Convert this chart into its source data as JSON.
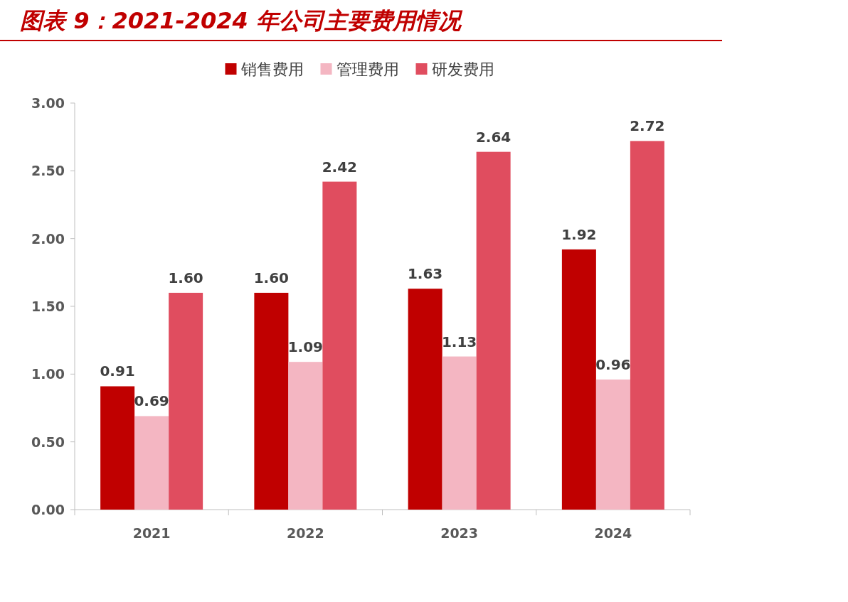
{
  "chart_data": {
    "type": "bar",
    "title": "图表 9：2021-2024 年公司主要费用情况",
    "categories": [
      "2021",
      "2022",
      "2023",
      "2024"
    ],
    "series": [
      {
        "name": "销售费用",
        "color": "#c00000",
        "values": [
          0.91,
          1.6,
          1.63,
          1.92
        ],
        "value_labels": [
          "0.91",
          "1.60",
          "1.63",
          "1.92"
        ]
      },
      {
        "name": "管理费用",
        "color": "#f4b6c2",
        "values": [
          0.69,
          1.09,
          1.13,
          0.96
        ],
        "value_labels": [
          "0.69",
          "1.09",
          "1.13",
          "0.96"
        ]
      },
      {
        "name": "研发费用",
        "color": "#e04d5f",
        "values": [
          1.6,
          2.42,
          2.64,
          2.72
        ],
        "value_labels": [
          "1.60",
          "2.42",
          "2.64",
          "2.72"
        ]
      }
    ],
    "ylim": [
      0,
      3
    ],
    "yticks": [
      {
        "value": 0,
        "label": "0.00"
      },
      {
        "value": 0.5,
        "label": "0.50"
      },
      {
        "value": 1,
        "label": "1.00"
      },
      {
        "value": 1.5,
        "label": "1.50"
      },
      {
        "value": 2,
        "label": "2.00"
      },
      {
        "value": 2.5,
        "label": "2.50"
      },
      {
        "value": 3,
        "label": "3.00"
      }
    ],
    "legend": "top",
    "grid": false
  }
}
